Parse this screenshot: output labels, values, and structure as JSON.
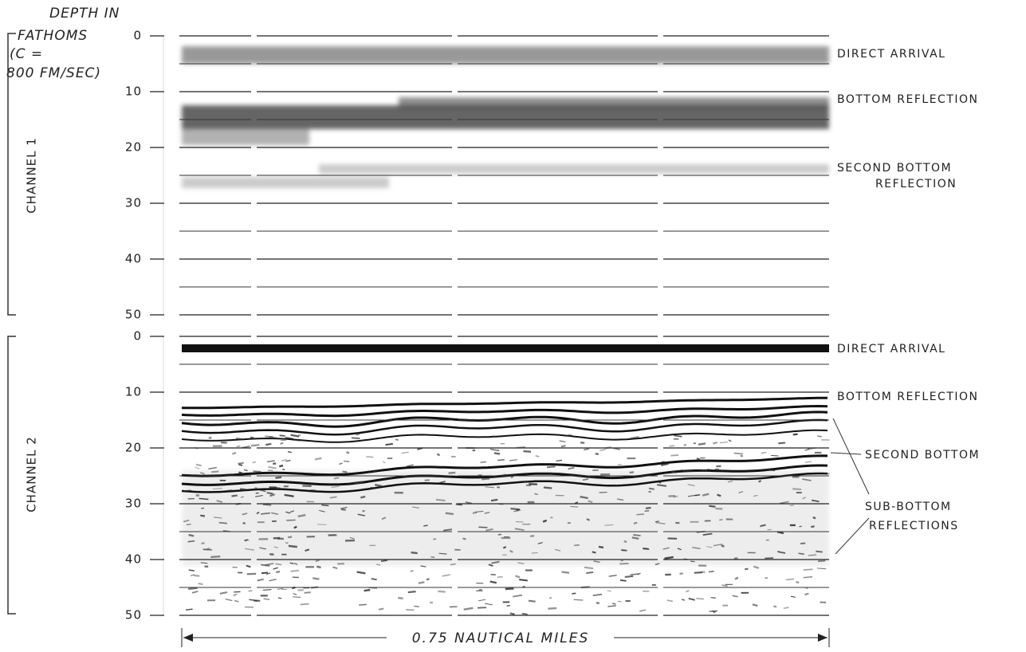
{
  "axis_title": [
    "DEPTH IN",
    "FATHOMS",
    "(C =",
    "800 FM/SEC)"
  ],
  "panels": [
    {
      "label": "CHANNEL 1",
      "yticks": [
        0,
        10,
        20,
        30,
        40,
        50
      ],
      "annotations": [
        "DIRECT ARRIVAL",
        "BOTTOM REFLECTION",
        "SECOND BOTTOM",
        "REFLECTION"
      ]
    },
    {
      "label": "CHANNEL 2",
      "yticks": [
        0,
        10,
        20,
        30,
        40,
        50
      ],
      "annotations": [
        "DIRECT ARRIVAL",
        "BOTTOM REFLECTION",
        "SECOND BOTTOM",
        "SUB-BOTTOM",
        "REFLECTIONS"
      ]
    }
  ],
  "scale_label": "0.75 NAUTICAL MILES"
}
